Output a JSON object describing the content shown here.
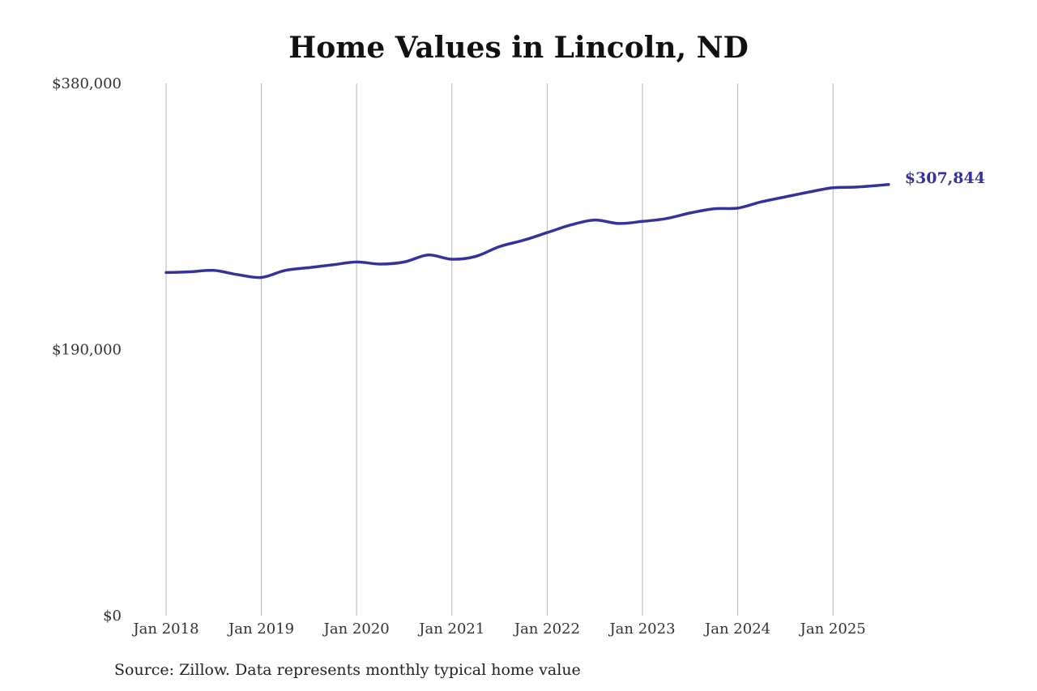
{
  "chart_data": {
    "type": "line",
    "title": "Home Values in Lincoln, ND",
    "xlabel": "",
    "ylabel": "",
    "ylim": [
      0,
      380000
    ],
    "yticks": [
      {
        "value": 0,
        "label": "$0"
      },
      {
        "value": 190000,
        "label": "$190,000"
      },
      {
        "value": 380000,
        "label": "$380,000"
      }
    ],
    "xticks": [
      {
        "value": "2018-01",
        "label": "Jan 2018"
      },
      {
        "value": "2019-01",
        "label": "Jan 2019"
      },
      {
        "value": "2020-01",
        "label": "Jan 2020"
      },
      {
        "value": "2021-01",
        "label": "Jan 2021"
      },
      {
        "value": "2022-01",
        "label": "Jan 2022"
      },
      {
        "value": "2023-01",
        "label": "Jan 2023"
      },
      {
        "value": "2024-01",
        "label": "Jan 2024"
      },
      {
        "value": "2025-01",
        "label": "Jan 2025"
      }
    ],
    "grid": "vertical",
    "series": [
      {
        "color": "#35339a",
        "end_label": "$307,844",
        "points": [
          {
            "x": "2018-01",
            "y": 245000
          },
          {
            "x": "2018-04",
            "y": 245500
          },
          {
            "x": "2018-07",
            "y": 246500
          },
          {
            "x": "2018-10",
            "y": 243500
          },
          {
            "x": "2019-01",
            "y": 241500
          },
          {
            "x": "2019-04",
            "y": 246500
          },
          {
            "x": "2019-07",
            "y": 248500
          },
          {
            "x": "2019-10",
            "y": 250500
          },
          {
            "x": "2020-01",
            "y": 252500
          },
          {
            "x": "2020-04",
            "y": 251000
          },
          {
            "x": "2020-07",
            "y": 252500
          },
          {
            "x": "2020-10",
            "y": 257500
          },
          {
            "x": "2021-01",
            "y": 254500
          },
          {
            "x": "2021-04",
            "y": 256500
          },
          {
            "x": "2021-07",
            "y": 263500
          },
          {
            "x": "2021-10",
            "y": 268000
          },
          {
            "x": "2022-01",
            "y": 273500
          },
          {
            "x": "2022-04",
            "y": 279000
          },
          {
            "x": "2022-07",
            "y": 282500
          },
          {
            "x": "2022-10",
            "y": 280000
          },
          {
            "x": "2023-01",
            "y": 281500
          },
          {
            "x": "2023-04",
            "y": 283500
          },
          {
            "x": "2023-07",
            "y": 287500
          },
          {
            "x": "2023-10",
            "y": 290500
          },
          {
            "x": "2024-01",
            "y": 291000
          },
          {
            "x": "2024-04",
            "y": 295500
          },
          {
            "x": "2024-07",
            "y": 299000
          },
          {
            "x": "2024-10",
            "y": 302500
          },
          {
            "x": "2025-01",
            "y": 305500
          },
          {
            "x": "2025-04",
            "y": 306000
          },
          {
            "x": "2025-08",
            "y": 307844
          }
        ]
      }
    ]
  },
  "source": "Source: Zillow. Data represents monthly typical home value"
}
